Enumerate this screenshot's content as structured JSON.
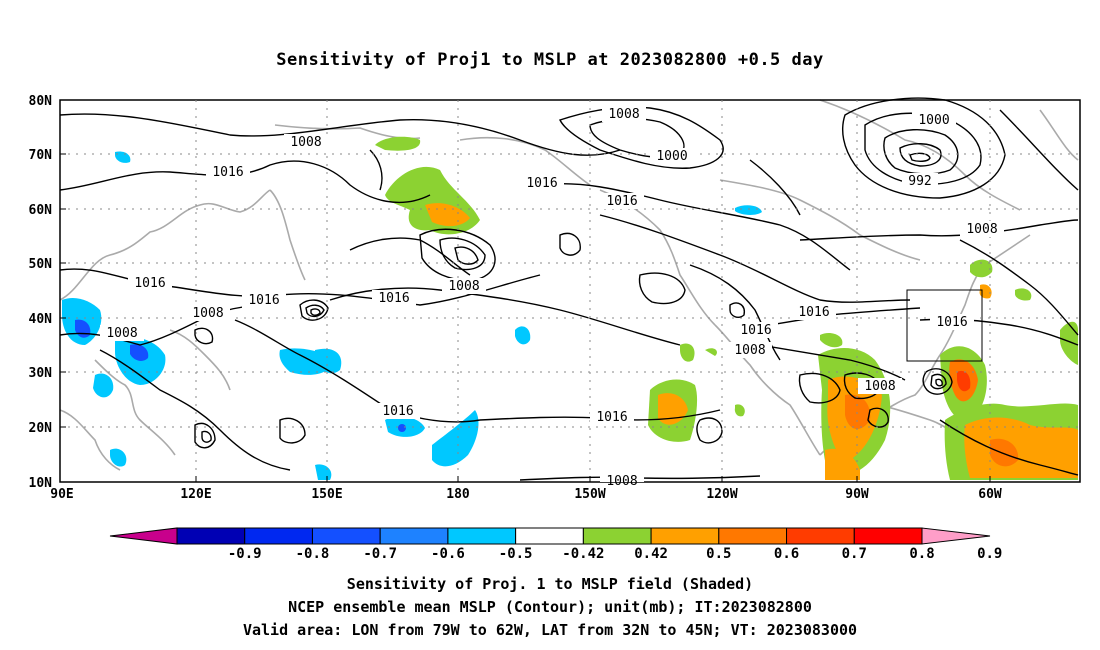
{
  "title": "Sensitivity of Proj1 to MSLP at 2023082800 +0.5 day",
  "map": {
    "lat_labels": [
      "80N",
      "70N",
      "60N",
      "50N",
      "40N",
      "30N",
      "20N",
      "10N"
    ],
    "lon_labels": [
      "90E",
      "120E",
      "150E",
      "180",
      "150W",
      "120W",
      "90W",
      "60W"
    ],
    "contour_labels": [
      "1008",
      "1016",
      "1016",
      "1008",
      "1016",
      "1008",
      "1008",
      "1016",
      "1008",
      "1016",
      "1016",
      "1016",
      "1016",
      "1008",
      "1000",
      "1016",
      "1016",
      "1008",
      "1000",
      "992",
      "1008",
      "1016",
      "1016",
      "1008",
      "1008"
    ],
    "valid_area_box": {
      "lon_west": "79W",
      "lon_east": "62W",
      "lat_south": "32N",
      "lat_north": "45N"
    }
  },
  "colorbar": {
    "labels": [
      "-0.9",
      "-0.8",
      "-0.7",
      "-0.6",
      "-0.5",
      "-0.42",
      "0.42",
      "0.5",
      "0.6",
      "0.7",
      "0.8",
      "0.9"
    ],
    "colors": [
      "#c8008c",
      "#0000b4",
      "#0028f0",
      "#1450ff",
      "#1e82ff",
      "#00c8ff",
      "#ffffff",
      "#8cd232",
      "#ffa000",
      "#ff7800",
      "#ff3c00",
      "#ff0000",
      "#ff9ec8"
    ]
  },
  "footer": {
    "line1": "Sensitivity of Proj. 1 to MSLP field (Shaded)",
    "line2": "NCEP ensemble mean MSLP (Contour); unit(mb); IT:2023082800",
    "line3": "Valid area: LON from 79W to 62W, LAT from 32N to 45N; VT: 2023083000"
  }
}
